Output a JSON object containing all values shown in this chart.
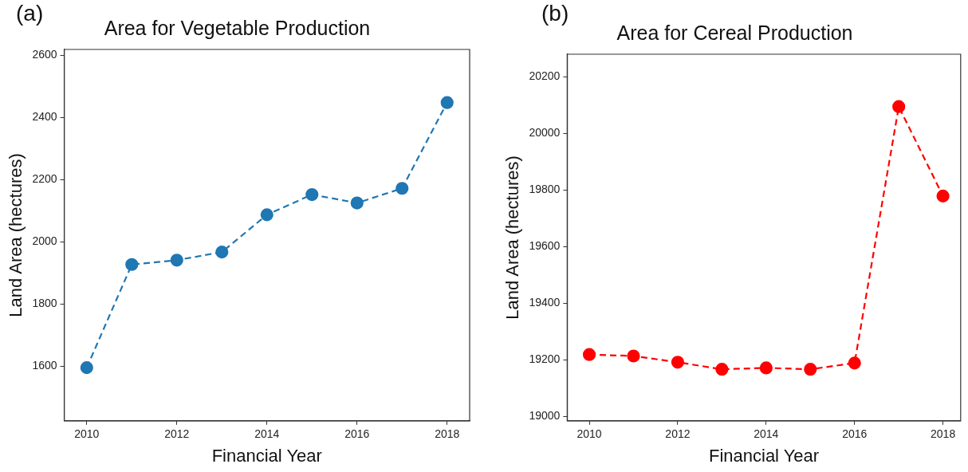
{
  "chart_data": [
    {
      "type": "line",
      "title": "Area for Vegetable Production",
      "xlabel": "Financial Year",
      "ylabel": "Land Area (hectures)",
      "annotations": [
        "(a)"
      ],
      "x": [
        2010,
        2011,
        2012,
        2013,
        2014,
        2015,
        2016,
        2017,
        2018
      ],
      "series": [
        {
          "color": "#1f77b4",
          "values": [
            1595,
            1927,
            1941,
            1967,
            2087,
            2152,
            2125,
            2172,
            2448
          ]
        }
      ],
      "xlim": [
        2009.5,
        2018.5
      ],
      "xticks": [
        2010,
        2012,
        2014,
        2016,
        2018
      ],
      "ylim": [
        1424,
        2619
      ],
      "yticks": [
        1600,
        1800,
        2000,
        2200,
        2400,
        2600
      ],
      "grid": false,
      "legend": false,
      "marker": "circle",
      "line_style": "dashed"
    },
    {
      "type": "line",
      "title": "Area for Cereal Production",
      "xlabel": "Financial Year",
      "ylabel": "Land Area (hectures)",
      "annotations": [
        "(b)"
      ],
      "x": [
        2010,
        2011,
        2012,
        2013,
        2014,
        2015,
        2016,
        2017,
        2018
      ],
      "series": [
        {
          "color": "#ff0000",
          "values": [
            19219,
            19214,
            19192,
            19167,
            19172,
            19167,
            19189,
            20095,
            19779
          ]
        }
      ],
      "xlim": [
        2009.5,
        2018.4
      ],
      "xticks": [
        2010,
        2012,
        2014,
        2016,
        2018
      ],
      "ylim": [
        18985,
        20280
      ],
      "yticks": [
        19000,
        19200,
        19400,
        19600,
        19800,
        20000,
        20200
      ],
      "grid": false,
      "legend": false,
      "marker": "circle",
      "line_style": "dashed"
    }
  ]
}
